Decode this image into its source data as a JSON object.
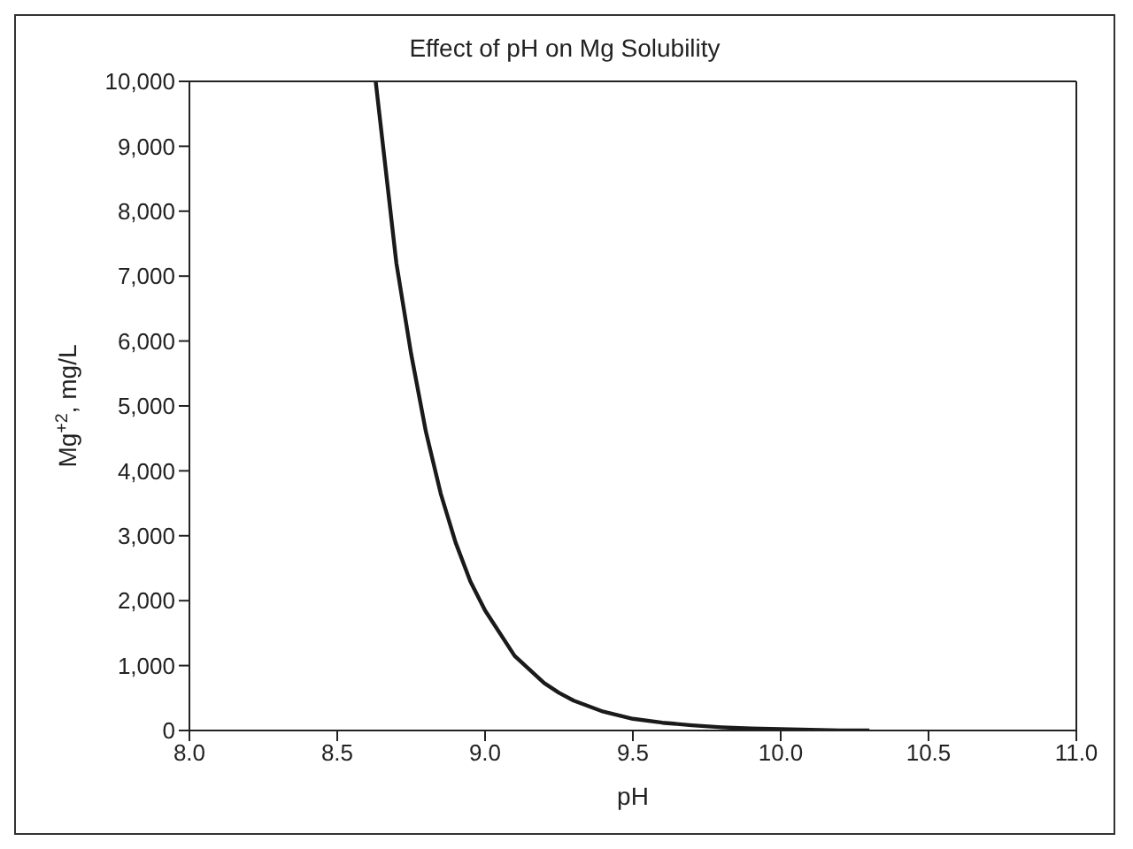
{
  "chart_data": {
    "type": "line",
    "title": "Effect of pH on Mg Solubility",
    "xlabel": "pH",
    "ylabel": "Mg$^{+2}$, mg/L",
    "x": [
      8.63,
      8.7,
      8.75,
      8.8,
      8.85,
      8.9,
      8.95,
      9.0,
      9.1,
      9.2,
      9.25,
      9.3,
      9.4,
      9.5,
      9.6,
      9.7,
      9.8,
      9.9,
      10.0,
      10.1,
      10.2,
      10.3
    ],
    "series": [
      {
        "color": "#1a1a1a",
        "values": [
          10000,
          7200,
          5800,
          4600,
          3650,
          2900,
          2300,
          1850,
          1150,
          730,
          580,
          460,
          290,
          180,
          120,
          80,
          50,
          30,
          20,
          10,
          0,
          0
        ]
      }
    ],
    "xlim": [
      8,
      11
    ],
    "xticks": [
      {
        "value": 8,
        "label": "8.0"
      },
      {
        "value": 8.5,
        "label": "8.5"
      },
      {
        "value": 9,
        "label": "9.0"
      },
      {
        "value": 9.5,
        "label": "9.5"
      },
      {
        "value": 10,
        "label": "10.0"
      },
      {
        "value": 10.5,
        "label": "10.5"
      },
      {
        "value": 11,
        "label": "11.0"
      }
    ],
    "ylim": [
      0,
      10000
    ],
    "yticks": [
      0,
      {
        "value": 1000,
        "label": "1,000"
      },
      {
        "value": 2000,
        "label": "2,000"
      },
      {
        "value": 3000,
        "label": "3,000"
      },
      {
        "value": 4000,
        "label": "4,000"
      },
      {
        "value": 5000,
        "label": "5,000"
      },
      {
        "value": 6000,
        "label": "6,000"
      },
      {
        "value": 7000,
        "label": "7,000"
      },
      {
        "value": 8000,
        "label": "8,000"
      },
      {
        "value": 9000,
        "label": "9,000"
      },
      {
        "value": 10000,
        "label": "10,000"
      }
    ],
    "marker": "none",
    "line_style": "solid",
    "grid": false,
    "legend": false
  }
}
